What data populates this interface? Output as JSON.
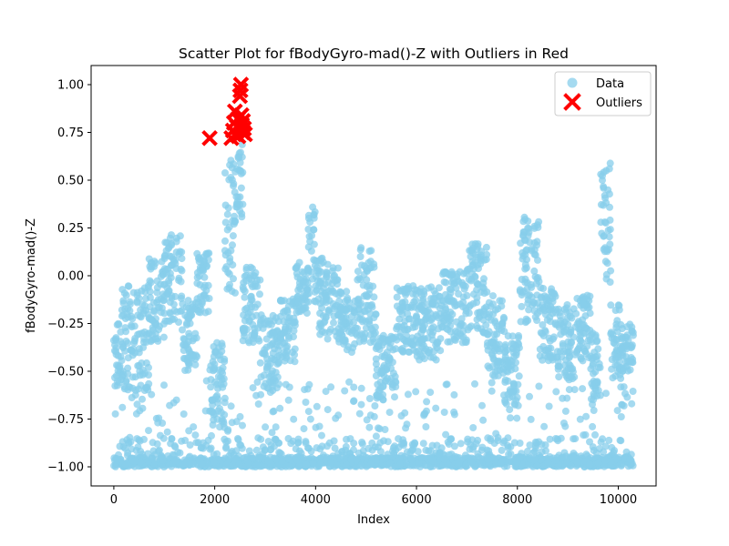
{
  "chart_data": {
    "type": "scatter",
    "title": "Scatter Plot for fBodyGyro-mad()-Z with Outliers in Red",
    "xlabel": "Index",
    "ylabel": "fBodyGyro-mad()-Z",
    "xlim": [
      -450,
      10750
    ],
    "ylim": [
      -1.1,
      1.1
    ],
    "xticks": [
      0,
      2000,
      4000,
      6000,
      8000,
      10000
    ],
    "yticks": [
      -1.0,
      -0.75,
      -0.5,
      -0.25,
      0.0,
      0.25,
      0.5,
      0.75,
      1.0
    ],
    "xtick_labels": [
      "0",
      "2000",
      "4000",
      "6000",
      "8000",
      "10000"
    ],
    "ytick_labels": [
      "−1.00",
      "−0.75",
      "−0.50",
      "−0.25",
      "0.00",
      "0.25",
      "0.50",
      "0.75",
      "1.00"
    ],
    "grid": false,
    "legend_position": "top-right",
    "series": [
      {
        "name": "Data",
        "color": "#87CEEB",
        "marker": "circle",
        "x_range": [
          0,
          10299
        ],
        "clusters": [
          {
            "x": [
              0,
              150
            ],
            "y": [
              -0.58,
              -0.25
            ]
          },
          {
            "x": [
              150,
              700
            ],
            "y": [
              -0.6,
              -0.05
            ]
          },
          {
            "x": [
              700,
              1000
            ],
            "y": [
              -0.35,
              0.1
            ]
          },
          {
            "x": [
              1000,
              1350
            ],
            "y": [
              -0.25,
              0.22
            ]
          },
          {
            "x": [
              1350,
              1650
            ],
            "y": [
              -0.5,
              -0.12
            ]
          },
          {
            "x": [
              1650,
              1900
            ],
            "y": [
              -0.2,
              0.12
            ]
          },
          {
            "x": [
              1900,
              2200
            ],
            "y": [
              -0.8,
              -0.35
            ]
          },
          {
            "x": [
              2200,
              2450
            ],
            "y": [
              -0.1,
              0.62
            ]
          },
          {
            "x": [
              2450,
              2560
            ],
            "y": [
              0.3,
              0.7
            ]
          },
          {
            "x": [
              2560,
              2900
            ],
            "y": [
              -0.35,
              0.05
            ]
          },
          {
            "x": [
              2900,
              3300
            ],
            "y": [
              -0.62,
              -0.2
            ]
          },
          {
            "x": [
              3300,
              3600
            ],
            "y": [
              -0.45,
              -0.1
            ]
          },
          {
            "x": [
              3600,
              3850
            ],
            "y": [
              -0.2,
              0.08
            ]
          },
          {
            "x": [
              3850,
              4000
            ],
            "y": [
              -0.2,
              0.4
            ]
          },
          {
            "x": [
              4000,
              4450
            ],
            "y": [
              -0.35,
              0.1
            ]
          },
          {
            "x": [
              4450,
              4800
            ],
            "y": [
              -0.4,
              -0.08
            ]
          },
          {
            "x": [
              4800,
              5200
            ],
            "y": [
              -0.35,
              0.15
            ]
          },
          {
            "x": [
              5200,
              5600
            ],
            "y": [
              -0.65,
              -0.3
            ]
          },
          {
            "x": [
              5600,
              6000
            ],
            "y": [
              -0.4,
              -0.05
            ]
          },
          {
            "x": [
              6000,
              6500
            ],
            "y": [
              -0.45,
              -0.05
            ]
          },
          {
            "x": [
              6500,
              7000
            ],
            "y": [
              -0.35,
              0.03
            ]
          },
          {
            "x": [
              7000,
              7400
            ],
            "y": [
              -0.3,
              0.18
            ]
          },
          {
            "x": [
              7400,
              7750
            ],
            "y": [
              -0.55,
              -0.1
            ]
          },
          {
            "x": [
              7750,
              8050
            ],
            "y": [
              -0.68,
              -0.3
            ]
          },
          {
            "x": [
              8050,
              8450
            ],
            "y": [
              -0.25,
              0.32
            ]
          },
          {
            "x": [
              8450,
              8800
            ],
            "y": [
              -0.45,
              -0.05
            ]
          },
          {
            "x": [
              8800,
              9150
            ],
            "y": [
              -0.55,
              -0.15
            ]
          },
          {
            "x": [
              9150,
              9450
            ],
            "y": [
              -0.45,
              -0.1
            ]
          },
          {
            "x": [
              9450,
              9650
            ],
            "y": [
              -0.65,
              -0.3
            ]
          },
          {
            "x": [
              9650,
              9850
            ],
            "y": [
              -0.05,
              0.62
            ]
          },
          {
            "x": [
              9850,
              10050
            ],
            "y": [
              -0.55,
              -0.15
            ]
          },
          {
            "x": [
              10050,
              10299
            ],
            "y": [
              -0.5,
              -0.25
            ]
          }
        ],
        "baseline_band": {
          "x": [
            0,
            10299
          ],
          "y": [
            -1.0,
            -0.85
          ]
        }
      },
      {
        "name": "Outliers",
        "color": "#FF0000",
        "marker": "x",
        "points": [
          [
            1900,
            0.72
          ],
          [
            2330,
            0.72
          ],
          [
            2360,
            0.76
          ],
          [
            2380,
            0.8
          ],
          [
            2400,
            0.86
          ],
          [
            2420,
            0.74
          ],
          [
            2440,
            0.78
          ],
          [
            2460,
            0.82
          ],
          [
            2470,
            0.73
          ],
          [
            2490,
            0.77
          ],
          [
            2500,
            0.94
          ],
          [
            2510,
            0.97
          ],
          [
            2520,
            1.0
          ],
          [
            2530,
            0.84
          ],
          [
            2540,
            0.79
          ],
          [
            2550,
            0.75
          ],
          [
            2560,
            0.81
          ],
          [
            2580,
            0.77
          ],
          [
            2600,
            0.74
          ]
        ]
      }
    ]
  }
}
